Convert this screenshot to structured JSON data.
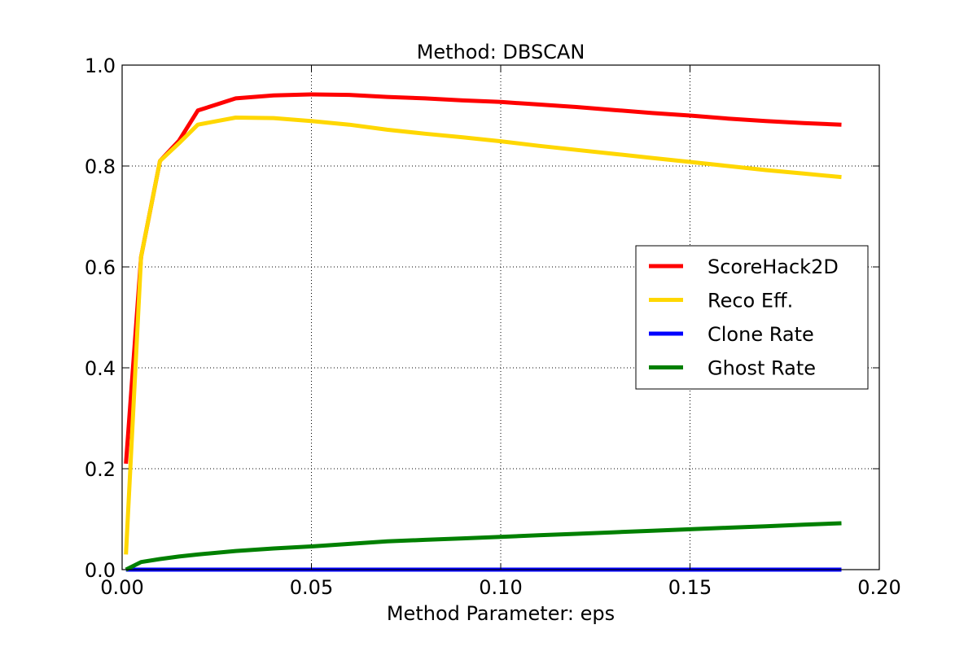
{
  "chart_data": {
    "type": "line",
    "title": "Method: DBSCAN",
    "xlabel": "Method Parameter: eps",
    "ylabel": "",
    "xlim": [
      0.0,
      0.2
    ],
    "ylim": [
      0.0,
      1.0
    ],
    "x_ticks": [
      "0.00",
      "0.05",
      "0.10",
      "0.15",
      "0.20"
    ],
    "y_ticks": [
      "0.0",
      "0.2",
      "0.4",
      "0.6",
      "0.8",
      "1.0"
    ],
    "grid": true,
    "legend_position": "center-right",
    "x": [
      0.001,
      0.005,
      0.01,
      0.015,
      0.02,
      0.03,
      0.04,
      0.05,
      0.06,
      0.07,
      0.08,
      0.09,
      0.1,
      0.11,
      0.12,
      0.13,
      0.14,
      0.15,
      0.16,
      0.17,
      0.18,
      0.19
    ],
    "series": [
      {
        "name": "ScoreHack2D",
        "color": "#ff0000",
        "values": [
          0.21,
          0.62,
          0.81,
          0.85,
          0.91,
          0.934,
          0.94,
          0.942,
          0.941,
          0.937,
          0.934,
          0.93,
          0.927,
          0.922,
          0.917,
          0.911,
          0.905,
          0.9,
          0.894,
          0.889,
          0.885,
          0.882
        ]
      },
      {
        "name": "Reco Eff.",
        "color": "#ffd700",
        "values": [
          0.03,
          0.62,
          0.81,
          0.845,
          0.882,
          0.896,
          0.895,
          0.889,
          0.882,
          0.872,
          0.864,
          0.857,
          0.849,
          0.84,
          0.832,
          0.824,
          0.816,
          0.808,
          0.8,
          0.792,
          0.785,
          0.778
        ]
      },
      {
        "name": "Clone Rate",
        "color": "#0000ff",
        "values": [
          0.0,
          0.0,
          0.0,
          0.0,
          0.0,
          0.0,
          0.0,
          0.0,
          0.0,
          0.0,
          0.0,
          0.0,
          0.0,
          0.0,
          0.0,
          0.0,
          0.0,
          0.0,
          0.0,
          0.0,
          0.0,
          0.0
        ]
      },
      {
        "name": "Ghost Rate",
        "color": "#008000",
        "values": [
          0.0,
          0.015,
          0.021,
          0.026,
          0.03,
          0.037,
          0.042,
          0.046,
          0.051,
          0.056,
          0.059,
          0.062,
          0.065,
          0.068,
          0.071,
          0.074,
          0.077,
          0.08,
          0.083,
          0.086,
          0.089,
          0.092
        ]
      }
    ]
  }
}
